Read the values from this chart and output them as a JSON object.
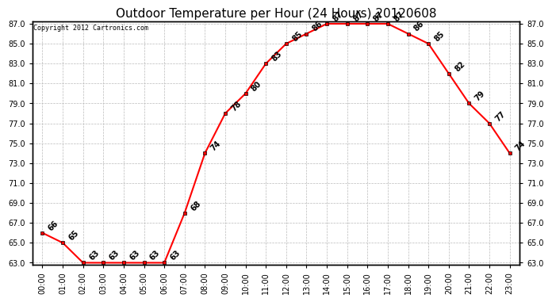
{
  "title": "Outdoor Temperature per Hour (24 Hours) 20120608",
  "copyright": "Copyright 2012 Cartronics.com",
  "hours": [
    "00:00",
    "01:00",
    "02:00",
    "03:00",
    "04:00",
    "05:00",
    "06:00",
    "07:00",
    "08:00",
    "09:00",
    "10:00",
    "11:00",
    "12:00",
    "13:00",
    "14:00",
    "15:00",
    "16:00",
    "17:00",
    "18:00",
    "19:00",
    "20:00",
    "21:00",
    "22:00",
    "23:00"
  ],
  "temps": [
    66,
    65,
    63,
    63,
    63,
    63,
    63,
    68,
    74,
    78,
    80,
    83,
    85,
    86,
    87,
    87,
    87,
    87,
    86,
    85,
    82,
    79,
    77,
    74
  ],
  "ylim_min": 63.0,
  "ylim_max": 87.0,
  "line_color": "#ff0000",
  "marker": "s",
  "marker_color": "#ff0000",
  "marker_size": 3,
  "bg_color": "#ffffff",
  "plot_bg_color": "#ffffff",
  "grid_color": "#bbbbbb",
  "title_fontsize": 11,
  "label_fontsize": 7,
  "annotation_fontsize": 7,
  "ytick_step": 2.0
}
